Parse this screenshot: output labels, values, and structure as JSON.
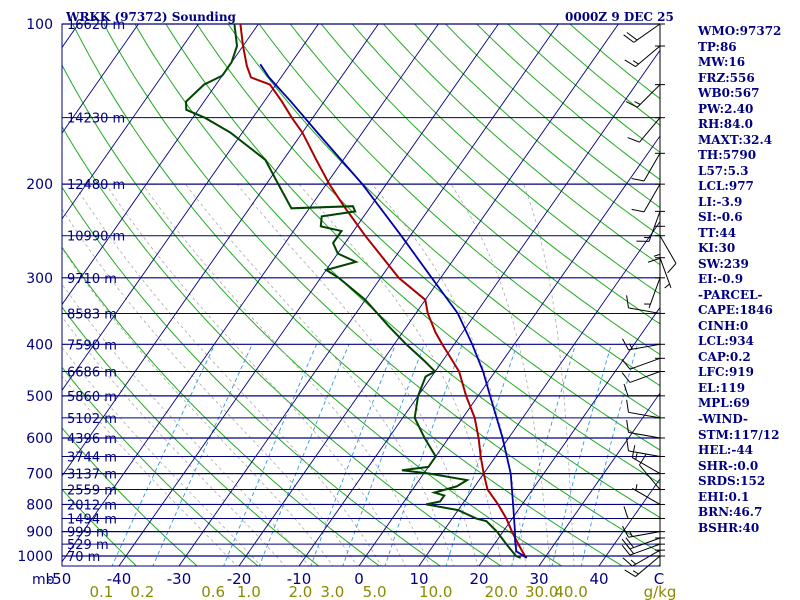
{
  "header": {
    "title": "WRKK (97372) Sounding",
    "timestamp": "0000Z  9 DEC 25"
  },
  "colors": {
    "navy": "#000080",
    "isotherm": "#000080",
    "dry_adiabat": "#22aa22",
    "moist_adiabat": "#aaaaaa",
    "mixing_ratio": "#3399dd",
    "temperature": "#aa0000",
    "dewpoint": "#004400",
    "parcel": "#0000aa",
    "wind": "#000000"
  },
  "sidebar": {
    "lines": [
      "WMO:97372",
      "TP:86",
      "MW:16",
      "FRZ:556",
      "WB0:567",
      "PW:2.40",
      "RH:84.0",
      "MAXT:32.4",
      "TH:5790",
      "L57:5.3",
      "LCL:977",
      "LI:-3.9",
      "SI:-0.6",
      "TT:44",
      "KI:30",
      "SW:239",
      "EI:-0.9",
      "-PARCEL-",
      "CAPE:1846",
      "CINH:0",
      "LCL:934",
      "CAP:0.2",
      "LFC:919",
      "EL:119",
      "MPL:69",
      "-WIND-",
      "STM:117/12",
      "HEL:-44",
      "SHR-:0.0",
      "SRDS:152",
      "EHI:0.1",
      "BRN:46.7",
      "BSHR:40"
    ]
  },
  "chart_data": {
    "type": "skew-t",
    "title": "WRKK (97372) Sounding",
    "valid_time": "0000Z  9 DEC 25",
    "pressure_unit": "mb",
    "pressure_levels": [
      100,
      200,
      300,
      400,
      500,
      600,
      700,
      800,
      900,
      1000
    ],
    "pressure_labels": [
      "100",
      "200",
      "300",
      "400",
      "500",
      "600",
      "700",
      "800",
      "900",
      "1000"
    ],
    "ylim_mb": [
      1050,
      100
    ],
    "temp_ticks": [
      -50,
      -40,
      -30,
      -20,
      -10,
      0,
      10,
      20,
      30,
      40,
      50
    ],
    "temp_tick_labels": [
      "-50",
      "-40",
      "-30",
      "-20",
      "-10",
      "0",
      "10",
      "20",
      "30",
      "40",
      "C"
    ],
    "mixing_ratio_unit": "g/kg",
    "mixing_ratio_lines": [
      0.1,
      0.2,
      0.6,
      1.0,
      2.0,
      3.0,
      5.0,
      10.0,
      20.0,
      30.0,
      40.0
    ],
    "mixing_ratio_labels": [
      "0.1",
      "0.2",
      "0.6",
      "1.0",
      "2.0",
      "3.0",
      "5.0",
      "10.0",
      "20.0",
      "30.0",
      "40.0"
    ],
    "height_labels": [
      {
        "p": 100,
        "label": "16620 m"
      },
      {
        "p": 150,
        "label": "14230 m"
      },
      {
        "p": 200,
        "label": "12480 m"
      },
      {
        "p": 250,
        "label": "10990 m"
      },
      {
        "p": 300,
        "label": "9710 m"
      },
      {
        "p": 350,
        "label": "8583 m"
      },
      {
        "p": 400,
        "label": "7590 m"
      },
      {
        "p": 450,
        "label": "6686 m"
      },
      {
        "p": 500,
        "label": "5860 m"
      },
      {
        "p": 550,
        "label": "5102 m"
      },
      {
        "p": 600,
        "label": "4396 m"
      },
      {
        "p": 650,
        "label": "3744 m"
      },
      {
        "p": 700,
        "label": "3137 m"
      },
      {
        "p": 750,
        "label": "2559 m"
      },
      {
        "p": 800,
        "label": "2012 m"
      },
      {
        "p": 850,
        "label": "1494 m"
      },
      {
        "p": 900,
        "label": "999 m"
      },
      {
        "p": 950,
        "label": "529 m"
      },
      {
        "p": 1000,
        "label": "70 m"
      }
    ],
    "series": [
      {
        "name": "Temperature",
        "values": [
          [
            1008,
            27.0
          ],
          [
            1000,
            26.5
          ],
          [
            950,
            24.0
          ],
          [
            900,
            21.5
          ],
          [
            850,
            19.0
          ],
          [
            800,
            16.0
          ],
          [
            750,
            12.5
          ],
          [
            700,
            10.0
          ],
          [
            650,
            7.5
          ],
          [
            600,
            5.0
          ],
          [
            550,
            2.0
          ],
          [
            500,
            -2.0
          ],
          [
            450,
            -6.0
          ],
          [
            420,
            -9.5
          ],
          [
            400,
            -12.0
          ],
          [
            380,
            -14.5
          ],
          [
            350,
            -18.0
          ],
          [
            330,
            -20.0
          ],
          [
            300,
            -27.0
          ],
          [
            250,
            -37.5
          ],
          [
            220,
            -44.5
          ],
          [
            200,
            -49.5
          ],
          [
            180,
            -54.5
          ],
          [
            160,
            -60.0
          ],
          [
            150,
            -63.5
          ],
          [
            140,
            -67.0
          ],
          [
            130,
            -71.0
          ],
          [
            126,
            -75.0
          ],
          [
            120,
            -77.0
          ],
          [
            110,
            -80.0
          ],
          [
            100,
            -83.0
          ],
          [
            95,
            -84.0
          ]
        ]
      },
      {
        "name": "Dewpoint",
        "values": [
          [
            1008,
            26.0
          ],
          [
            1000,
            25.0
          ],
          [
            950,
            22.0
          ],
          [
            900,
            19.0
          ],
          [
            860,
            16.0
          ],
          [
            850,
            14.0
          ],
          [
            820,
            10.0
          ],
          [
            800,
            4.0
          ],
          [
            790,
            6.0
          ],
          [
            770,
            6.0
          ],
          [
            760,
            4.0
          ],
          [
            740,
            7.0
          ],
          [
            720,
            8.0
          ],
          [
            700,
            1.0
          ],
          [
            690,
            -4.0
          ],
          [
            680,
            0.0
          ],
          [
            650,
            0.0
          ],
          [
            600,
            -4.0
          ],
          [
            550,
            -8.0
          ],
          [
            500,
            -10.0
          ],
          [
            460,
            -11.0
          ],
          [
            450,
            -10.0
          ],
          [
            430,
            -13.0
          ],
          [
            400,
            -18.0
          ],
          [
            370,
            -23.0
          ],
          [
            330,
            -30.0
          ],
          [
            300,
            -37.0
          ],
          [
            290,
            -40.0
          ],
          [
            280,
            -36.0
          ],
          [
            270,
            -40.0
          ],
          [
            258,
            -42.0
          ],
          [
            245,
            -42.0
          ],
          [
            240,
            -46.0
          ],
          [
            230,
            -47.0
          ],
          [
            225,
            -42.0
          ],
          [
            220,
            -43.0
          ],
          [
            222,
            -53.0
          ],
          [
            200,
            -58.0
          ],
          [
            180,
            -63.0
          ],
          [
            160,
            -72.0
          ],
          [
            150,
            -78.0
          ],
          [
            145,
            -82.0
          ],
          [
            140,
            -83.0
          ],
          [
            130,
            -82.0
          ],
          [
            125,
            -80.0
          ],
          [
            118,
            -80.0
          ],
          [
            110,
            -81.0
          ],
          [
            100,
            -84.0
          ],
          [
            95,
            -86.0
          ]
        ]
      },
      {
        "name": "Parcel",
        "values": [
          [
            1008,
            27.0
          ],
          [
            980,
            24.5
          ],
          [
            934,
            23.0
          ],
          [
            900,
            22.0
          ],
          [
            800,
            18.5
          ],
          [
            700,
            14.5
          ],
          [
            600,
            9.0
          ],
          [
            500,
            2.0
          ],
          [
            450,
            -2.0
          ],
          [
            400,
            -7.0
          ],
          [
            350,
            -13.0
          ],
          [
            300,
            -21.5
          ],
          [
            250,
            -31.5
          ],
          [
            200,
            -44.0
          ],
          [
            160,
            -57.5
          ],
          [
            140,
            -65.5
          ],
          [
            126,
            -72.0
          ],
          [
            119,
            -75.0
          ]
        ]
      }
    ],
    "wind_barbs": [
      {
        "p": 1000,
        "dir": 230,
        "spd": 15
      },
      {
        "p": 975,
        "dir": 240,
        "spd": 15
      },
      {
        "p": 950,
        "dir": 250,
        "spd": 20
      },
      {
        "p": 925,
        "dir": 250,
        "spd": 20
      },
      {
        "p": 900,
        "dir": 260,
        "spd": 15
      },
      {
        "p": 850,
        "dir": 270,
        "spd": 10
      },
      {
        "p": 800,
        "dir": 300,
        "spd": 5
      },
      {
        "p": 750,
        "dir": 320,
        "spd": 10
      },
      {
        "p": 700,
        "dir": 300,
        "spd": 15
      },
      {
        "p": 650,
        "dir": 280,
        "spd": 10
      },
      {
        "p": 600,
        "dir": 280,
        "spd": 10
      },
      {
        "p": 550,
        "dir": 280,
        "spd": 10
      },
      {
        "p": 500,
        "dir": 270,
        "spd": 10
      },
      {
        "p": 450,
        "dir": 250,
        "spd": 10
      },
      {
        "p": 425,
        "dir": 250,
        "spd": 10
      },
      {
        "p": 400,
        "dir": 260,
        "spd": 15
      },
      {
        "p": 350,
        "dir": 280,
        "spd": 10
      },
      {
        "p": 300,
        "dir": 200,
        "spd": 5
      },
      {
        "p": 275,
        "dir": 160,
        "spd": 5
      },
      {
        "p": 250,
        "dir": 150,
        "spd": 10
      },
      {
        "p": 240,
        "dir": 180,
        "spd": 15
      },
      {
        "p": 225,
        "dir": 200,
        "spd": 15
      },
      {
        "p": 200,
        "dir": 210,
        "spd": 10
      },
      {
        "p": 175,
        "dir": 210,
        "spd": 10
      },
      {
        "p": 150,
        "dir": 220,
        "spd": 10
      },
      {
        "p": 130,
        "dir": 225,
        "spd": 15
      },
      {
        "p": 110,
        "dir": 230,
        "spd": 15
      },
      {
        "p": 100,
        "dir": 235,
        "spd": 20
      }
    ]
  }
}
